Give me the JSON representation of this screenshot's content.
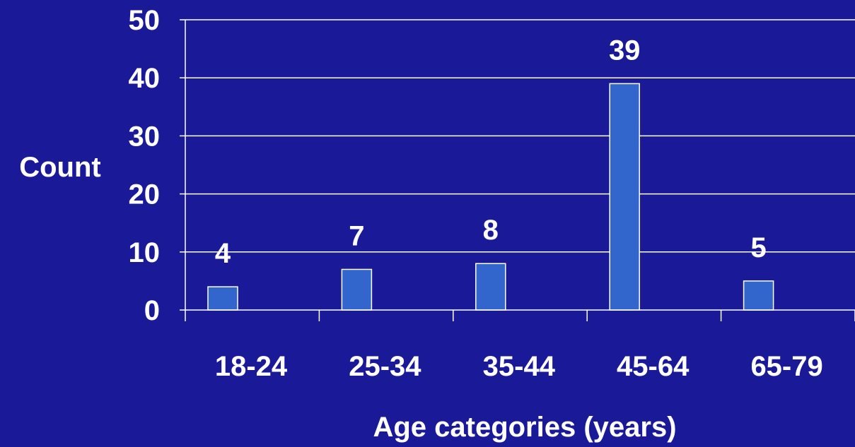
{
  "colors": {
    "background": "#1a1a99",
    "bar_fill": "#3366cc",
    "bar_stroke": "#ffffff",
    "axis": "#ffffff",
    "gridline": "#ffffff",
    "text": "#ffffff"
  },
  "chart_data": {
    "type": "bar",
    "categories": [
      "18-24",
      "25-34",
      "35-44",
      "45-64",
      "65-79"
    ],
    "values": [
      4,
      7,
      8,
      39,
      5
    ],
    "data_labels": [
      "4",
      "7",
      "8",
      "39",
      "5"
    ],
    "title": "",
    "xlabel": "Age categories (years)",
    "ylabel": "Count",
    "ylim": [
      0,
      50
    ],
    "yticks": [
      0,
      10,
      20,
      30,
      40,
      50
    ],
    "ytick_labels": [
      "0",
      "10",
      "20",
      "30",
      "40",
      "50"
    ],
    "grid": true,
    "legend": "none"
  }
}
